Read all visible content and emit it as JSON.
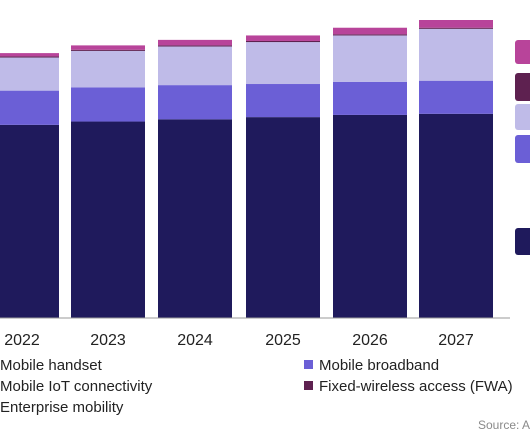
{
  "chart_data": {
    "type": "bar",
    "stacked": true,
    "categories": [
      "2022",
      "2023",
      "2024",
      "2025",
      "2026",
      "2027"
    ],
    "series": [
      {
        "name": "Mobile handset",
        "color": "#1f1a5c",
        "values": [
          175,
          178,
          180,
          182,
          184,
          185
        ]
      },
      {
        "name": "Mobile broadband",
        "color": "#6b5fd6",
        "values": [
          31,
          31,
          31,
          30,
          30,
          30
        ]
      },
      {
        "name": "Enterprise mobility",
        "color": "#bfbbe8",
        "values": [
          30,
          33,
          35,
          38,
          42,
          47
        ]
      },
      {
        "name": "Fixed-wireless access (FWA)",
        "color": "#5e2150",
        "values": [
          1,
          1,
          1,
          1,
          1,
          1
        ]
      },
      {
        "name": "Mobile IoT connectivity",
        "color": "#b8449a",
        "values": [
          3,
          4,
          5,
          5,
          6,
          7
        ]
      }
    ],
    "ylim": [
      0,
      270
    ],
    "grid": false,
    "legend_position": "bottom"
  },
  "legend": {
    "mobile_handset": "Mobile handset",
    "mobile_iot": "Mobile IoT connectivity",
    "enterprise_mobility": "Enterprise mobility",
    "mobile_broadband": "Mobile broadband",
    "fwa": "Fixed-wireless access (FWA)"
  },
  "source_text": "Source: A"
}
